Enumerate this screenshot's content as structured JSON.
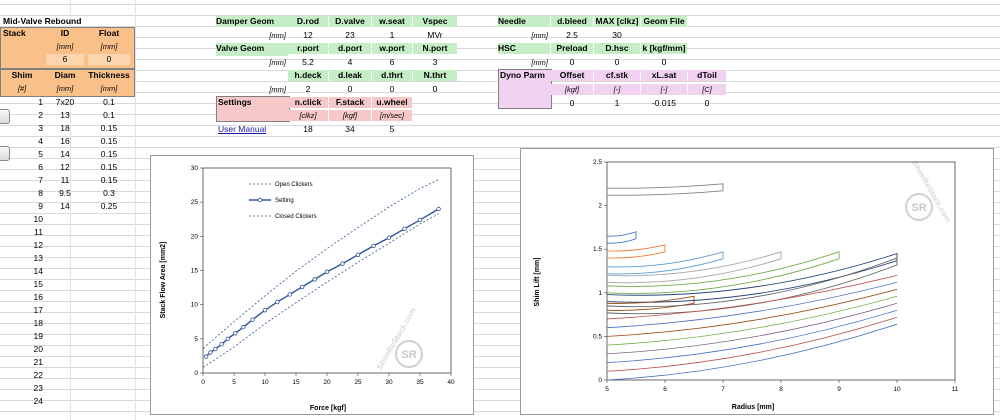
{
  "mid_valve": {
    "title": "Mid-Valve Rebound",
    "stack_label": "Stack",
    "id_label": "ID",
    "float_label": "Float",
    "id_unit": "[mm]",
    "float_unit": "[mm]",
    "id_value": "6",
    "float_value": "0",
    "shim_label": "Shim",
    "diam_label": "Diam",
    "thickness_label": "Thickness",
    "shim_unit": "[#]",
    "diam_unit": "[mm]",
    "thickness_unit": "[mm]",
    "rows": [
      {
        "n": "1",
        "diam": "7x20",
        "thk": "0.1"
      },
      {
        "n": "2",
        "diam": "13",
        "thk": "0.1"
      },
      {
        "n": "3",
        "diam": "18",
        "thk": "0.15"
      },
      {
        "n": "4",
        "diam": "16",
        "thk": "0.15"
      },
      {
        "n": "5",
        "diam": "14",
        "thk": "0.15"
      },
      {
        "n": "6",
        "diam": "12",
        "thk": "0.15"
      },
      {
        "n": "7",
        "diam": "11",
        "thk": "0.15"
      },
      {
        "n": "8",
        "diam": "9.5",
        "thk": "0.3"
      },
      {
        "n": "9",
        "diam": "14",
        "thk": "0.25"
      },
      {
        "n": "10",
        "diam": "",
        "thk": ""
      },
      {
        "n": "11",
        "diam": "",
        "thk": ""
      },
      {
        "n": "12",
        "diam": "",
        "thk": ""
      },
      {
        "n": "13",
        "diam": "",
        "thk": ""
      },
      {
        "n": "14",
        "diam": "",
        "thk": ""
      },
      {
        "n": "15",
        "diam": "",
        "thk": ""
      },
      {
        "n": "16",
        "diam": "",
        "thk": ""
      },
      {
        "n": "17",
        "diam": "",
        "thk": ""
      },
      {
        "n": "18",
        "diam": "",
        "thk": ""
      },
      {
        "n": "19",
        "diam": "",
        "thk": ""
      },
      {
        "n": "20",
        "diam": "",
        "thk": ""
      },
      {
        "n": "21",
        "diam": "",
        "thk": ""
      },
      {
        "n": "22",
        "diam": "",
        "thk": ""
      },
      {
        "n": "23",
        "diam": "",
        "thk": ""
      },
      {
        "n": "24",
        "diam": "",
        "thk": ""
      }
    ]
  },
  "damper": {
    "damper_geom": "Damper Geom",
    "h1": [
      "D.rod",
      "D.valve",
      "w.seat",
      "Vspec"
    ],
    "v1": [
      "12",
      "23",
      "1",
      "MVr"
    ],
    "unit_mm": "[mm]",
    "valve_geom": "Valve Geom",
    "h2": [
      "r.port",
      "d.port",
      "w.port",
      "N.port"
    ],
    "v2": [
      "5.2",
      "4",
      "6",
      "3"
    ],
    "h3": [
      "h.deck",
      "d.leak",
      "d.thrt",
      "N.thrt"
    ],
    "v3": [
      "2",
      "0",
      "0",
      "0"
    ],
    "settings": "Settings",
    "h4": [
      "n.click",
      "F.stack",
      "u.wheel"
    ],
    "u4": [
      "[clkz]",
      "[kgf]",
      "[m/sec]"
    ],
    "v4": [
      "18",
      "34",
      "5"
    ],
    "user_manual": "User Manual"
  },
  "needle": {
    "needle": "Needle",
    "h1": [
      "d.bleed",
      "MAX [clkz]",
      "Geom File"
    ],
    "v1": [
      "2.5",
      "30"
    ],
    "unit_mm": "[mm]",
    "hsc": "HSC",
    "h2": [
      "Preload",
      "D.hsc",
      "k [kgf/mm]"
    ],
    "v2": [
      "0",
      "0",
      "0"
    ],
    "dyno": "Dyno Parm",
    "h3": [
      "Offset",
      "cf.stk",
      "xL.sat",
      "dToil"
    ],
    "u3": [
      "[kgf]",
      "[-]",
      "[-]",
      "[C]"
    ],
    "v3": [
      "0",
      "1",
      "-0.015",
      "0"
    ]
  },
  "colors": {
    "orange": "#f9c089",
    "green": "#c6eec6",
    "pink": "#f6c8c8",
    "lilac": "#f1d3f1",
    "setting_line": "#2f5597",
    "clicker_line": "#2f5597"
  },
  "chart1": {
    "ylabel": "Stack Flow Area [mm2]",
    "xlabel": "Force [kgf]",
    "legend": [
      "Open Clickers",
      "Setting",
      "Closed Clickers"
    ],
    "watermark": "ShimReStack.com",
    "watermark_logo": "SR"
  },
  "chart2": {
    "ylabel": "Shim Lift [mm]",
    "xlabel": "Radius [mm]",
    "watermark": "ShimReStack.com",
    "watermark_logo": "SR"
  },
  "chart_data": [
    {
      "type": "line",
      "xlabel": "Force [kgf]",
      "ylabel": "Stack Flow Area [mm2]",
      "xlim": [
        0,
        40
      ],
      "ylim": [
        0,
        30
      ],
      "xticks": [
        0,
        5,
        10,
        15,
        20,
        25,
        30,
        35,
        40
      ],
      "yticks": [
        0,
        5,
        10,
        15,
        20,
        25,
        30
      ],
      "legend_position": "top-left",
      "series": [
        {
          "name": "Open Clickers",
          "style": "dashed",
          "x": [
            0,
            5,
            10,
            15,
            20,
            25,
            30,
            35,
            38
          ],
          "y": [
            3.6,
            7.5,
            11.3,
            14.9,
            18.2,
            21.3,
            24.3,
            27.0,
            28.3
          ]
        },
        {
          "name": "Setting",
          "style": "solid-markers",
          "x": [
            0.5,
            1.2,
            2,
            3,
            4,
            5.2,
            6.5,
            8,
            10,
            12,
            14,
            16,
            18,
            20,
            22.5,
            25,
            27.5,
            30,
            32.5,
            35,
            38
          ],
          "y": [
            2.4,
            3.0,
            3.5,
            4.2,
            5.0,
            5.8,
            6.7,
            7.8,
            9.2,
            10.4,
            11.5,
            12.6,
            13.7,
            14.8,
            16.0,
            17.3,
            18.6,
            19.8,
            21.1,
            22.4,
            24.0
          ]
        },
        {
          "name": "Closed Clickers",
          "style": "dashed",
          "x": [
            0,
            5,
            10,
            15,
            20,
            25,
            30,
            35,
            38
          ],
          "y": [
            0.8,
            3.8,
            7.2,
            10.3,
            13.3,
            16.2,
            19.0,
            21.8,
            23.3
          ]
        }
      ]
    },
    {
      "type": "line",
      "xlabel": "Radius [mm]",
      "ylabel": "Shim Lift [mm]",
      "xlim": [
        5,
        11
      ],
      "ylim": [
        0,
        2.5
      ],
      "xticks": [
        5,
        6,
        7,
        8,
        9,
        10,
        11
      ],
      "yticks": [
        0,
        0.5,
        1,
        1.5,
        2,
        2.5
      ],
      "series": [
        {
          "shim": 1,
          "color": "#7f7f7f",
          "x": [
            5,
            7
          ],
          "y": [
            2.2,
            2.25
          ]
        },
        {
          "shim": 2,
          "color": "#4472c4",
          "x": [
            5,
            5.5
          ],
          "y": [
            1.65,
            1.7
          ]
        },
        {
          "shim": 3,
          "color": "#ed7d31",
          "x": [
            5,
            6
          ],
          "y": [
            1.48,
            1.55
          ]
        },
        {
          "shim": 4,
          "color": "#5b9bd5",
          "x": [
            5,
            7
          ],
          "y": [
            1.3,
            1.47
          ]
        },
        {
          "shim": 5,
          "color": "#a5a5a5",
          "x": [
            5,
            8
          ],
          "y": [
            1.2,
            1.47
          ]
        },
        {
          "shim": 6,
          "color": "#70ad47",
          "x": [
            5,
            9
          ],
          "y": [
            1.08,
            1.47
          ]
        },
        {
          "shim": 7,
          "color": "#264478",
          "x": [
            5,
            10
          ],
          "y": [
            0.98,
            1.45
          ]
        },
        {
          "shim": 8,
          "color": "#9e480e",
          "x": [
            5,
            6.5
          ],
          "y": [
            0.88,
            0.96
          ]
        },
        {
          "shim": 9,
          "color": "#636363",
          "x": [
            5,
            10
          ],
          "y": [
            0.85,
            1.4
          ]
        }
      ]
    }
  ]
}
